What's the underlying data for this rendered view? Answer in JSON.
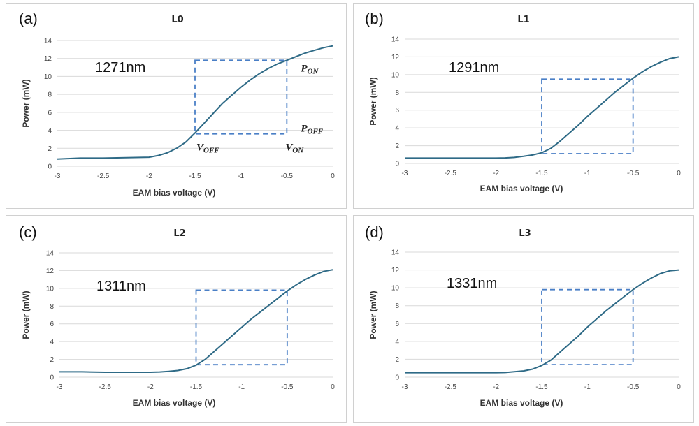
{
  "chart_data": [
    {
      "type": "line",
      "panel_label": "(a)",
      "title": "L0",
      "wavelength_label": "1271nm",
      "xlabel": "EAM bias voltage (V)",
      "ylabel": "Power (mW)",
      "xlim": [
        -3,
        0
      ],
      "ylim": [
        0,
        14
      ],
      "xticks": [
        "-3",
        "-2.5",
        "-2",
        "-1.5",
        "-1",
        "-0.5",
        "0"
      ],
      "yticks": [
        "0",
        "2",
        "4",
        "6",
        "8",
        "10",
        "12",
        "14"
      ],
      "grid": true,
      "x": [
        -3,
        -2.75,
        -2.5,
        -2.25,
        -2,
        -1.9,
        -1.8,
        -1.7,
        -1.6,
        -1.5,
        -1.4,
        -1.3,
        -1.2,
        -1.1,
        -1.0,
        -0.9,
        -0.8,
        -0.7,
        -0.6,
        -0.5,
        -0.4,
        -0.3,
        -0.2,
        -0.1,
        0
      ],
      "y": [
        0.8,
        0.9,
        0.9,
        0.95,
        1.0,
        1.2,
        1.5,
        2.0,
        2.7,
        3.7,
        4.8,
        5.9,
        7.0,
        7.9,
        8.8,
        9.6,
        10.3,
        10.9,
        11.4,
        11.8,
        12.2,
        12.6,
        12.9,
        13.2,
        13.4
      ],
      "box": {
        "v_off": -1.5,
        "v_on": -0.5,
        "p_off": 3.6,
        "p_on": 11.8
      },
      "annotations": {
        "p_on": {
          "main": "P",
          "sub": "ON"
        },
        "p_off": {
          "main": "P",
          "sub": "OFF"
        },
        "v_off": {
          "main": "V",
          "sub": "OFF"
        },
        "v_on": {
          "main": "V",
          "sub": "ON"
        }
      }
    },
    {
      "type": "line",
      "panel_label": "(b)",
      "title": "L1",
      "wavelength_label": "1291nm",
      "xlabel": "EAM bias voltage (V)",
      "ylabel": "Power (mW)",
      "xlim": [
        -3,
        0
      ],
      "ylim": [
        0,
        14
      ],
      "xticks": [
        "-3",
        "-2.5",
        "-2",
        "-1.5",
        "-1",
        "-0.5",
        "0"
      ],
      "yticks": [
        "0",
        "2",
        "4",
        "6",
        "8",
        "10",
        "12",
        "14"
      ],
      "grid": true,
      "x": [
        -3,
        -2.75,
        -2.5,
        -2.25,
        -2,
        -1.9,
        -1.8,
        -1.7,
        -1.6,
        -1.5,
        -1.4,
        -1.3,
        -1.2,
        -1.1,
        -1.0,
        -0.9,
        -0.8,
        -0.7,
        -0.6,
        -0.5,
        -0.4,
        -0.3,
        -0.2,
        -0.1,
        0
      ],
      "y": [
        0.6,
        0.6,
        0.6,
        0.6,
        0.6,
        0.62,
        0.68,
        0.8,
        0.95,
        1.2,
        1.7,
        2.5,
        3.4,
        4.3,
        5.3,
        6.2,
        7.1,
        8.0,
        8.8,
        9.6,
        10.3,
        10.9,
        11.4,
        11.8,
        12.0
      ],
      "box": {
        "v_off": -1.5,
        "v_on": -0.5,
        "p_off": 1.1,
        "p_on": 9.5
      }
    },
    {
      "type": "line",
      "panel_label": "(c)",
      "title": "L2",
      "wavelength_label": "1311nm",
      "xlabel": "EAM bias voltage (V)",
      "ylabel": "Power (mW)",
      "xlim": [
        -3,
        0
      ],
      "ylim": [
        0,
        14
      ],
      "xticks": [
        "-3",
        "-2.5",
        "-2",
        "-1.5",
        "-1",
        "-0.5",
        "0"
      ],
      "yticks": [
        "0",
        "2",
        "4",
        "6",
        "8",
        "10",
        "12",
        "14"
      ],
      "grid": true,
      "x": [
        -3,
        -2.75,
        -2.5,
        -2.25,
        -2,
        -1.9,
        -1.8,
        -1.7,
        -1.6,
        -1.5,
        -1.4,
        -1.3,
        -1.2,
        -1.1,
        -1.0,
        -0.9,
        -0.8,
        -0.7,
        -0.6,
        -0.5,
        -0.4,
        -0.3,
        -0.2,
        -0.1,
        0
      ],
      "y": [
        0.6,
        0.6,
        0.55,
        0.55,
        0.55,
        0.58,
        0.65,
        0.75,
        0.95,
        1.35,
        2.0,
        2.9,
        3.8,
        4.7,
        5.6,
        6.5,
        7.3,
        8.1,
        8.9,
        9.7,
        10.4,
        11.0,
        11.5,
        11.9,
        12.1
      ],
      "box": {
        "v_off": -1.5,
        "v_on": -0.5,
        "p_off": 1.4,
        "p_on": 9.8
      }
    },
    {
      "type": "line",
      "panel_label": "(d)",
      "title": "L3",
      "wavelength_label": "1331nm",
      "xlabel": "EAM bias voltage (V)",
      "ylabel": "Power (mW)",
      "xlim": [
        -3,
        0
      ],
      "ylim": [
        0,
        14
      ],
      "xticks": [
        "-3",
        "-2.5",
        "-2",
        "-1.5",
        "-1",
        "-0.5",
        "0"
      ],
      "yticks": [
        "0",
        "2",
        "4",
        "6",
        "8",
        "10",
        "12",
        "14"
      ],
      "grid": true,
      "x": [
        -3,
        -2.75,
        -2.5,
        -2.25,
        -2,
        -1.9,
        -1.8,
        -1.7,
        -1.6,
        -1.5,
        -1.4,
        -1.3,
        -1.2,
        -1.1,
        -1.0,
        -0.9,
        -0.8,
        -0.7,
        -0.6,
        -0.5,
        -0.4,
        -0.3,
        -0.2,
        -0.1,
        0
      ],
      "y": [
        0.5,
        0.5,
        0.5,
        0.5,
        0.5,
        0.52,
        0.6,
        0.7,
        0.9,
        1.3,
        1.9,
        2.8,
        3.7,
        4.6,
        5.6,
        6.5,
        7.4,
        8.2,
        9.0,
        9.8,
        10.5,
        11.1,
        11.6,
        11.9,
        12.0
      ],
      "box": {
        "v_off": -1.5,
        "v_on": -0.5,
        "p_off": 1.4,
        "p_on": 9.8
      }
    }
  ]
}
